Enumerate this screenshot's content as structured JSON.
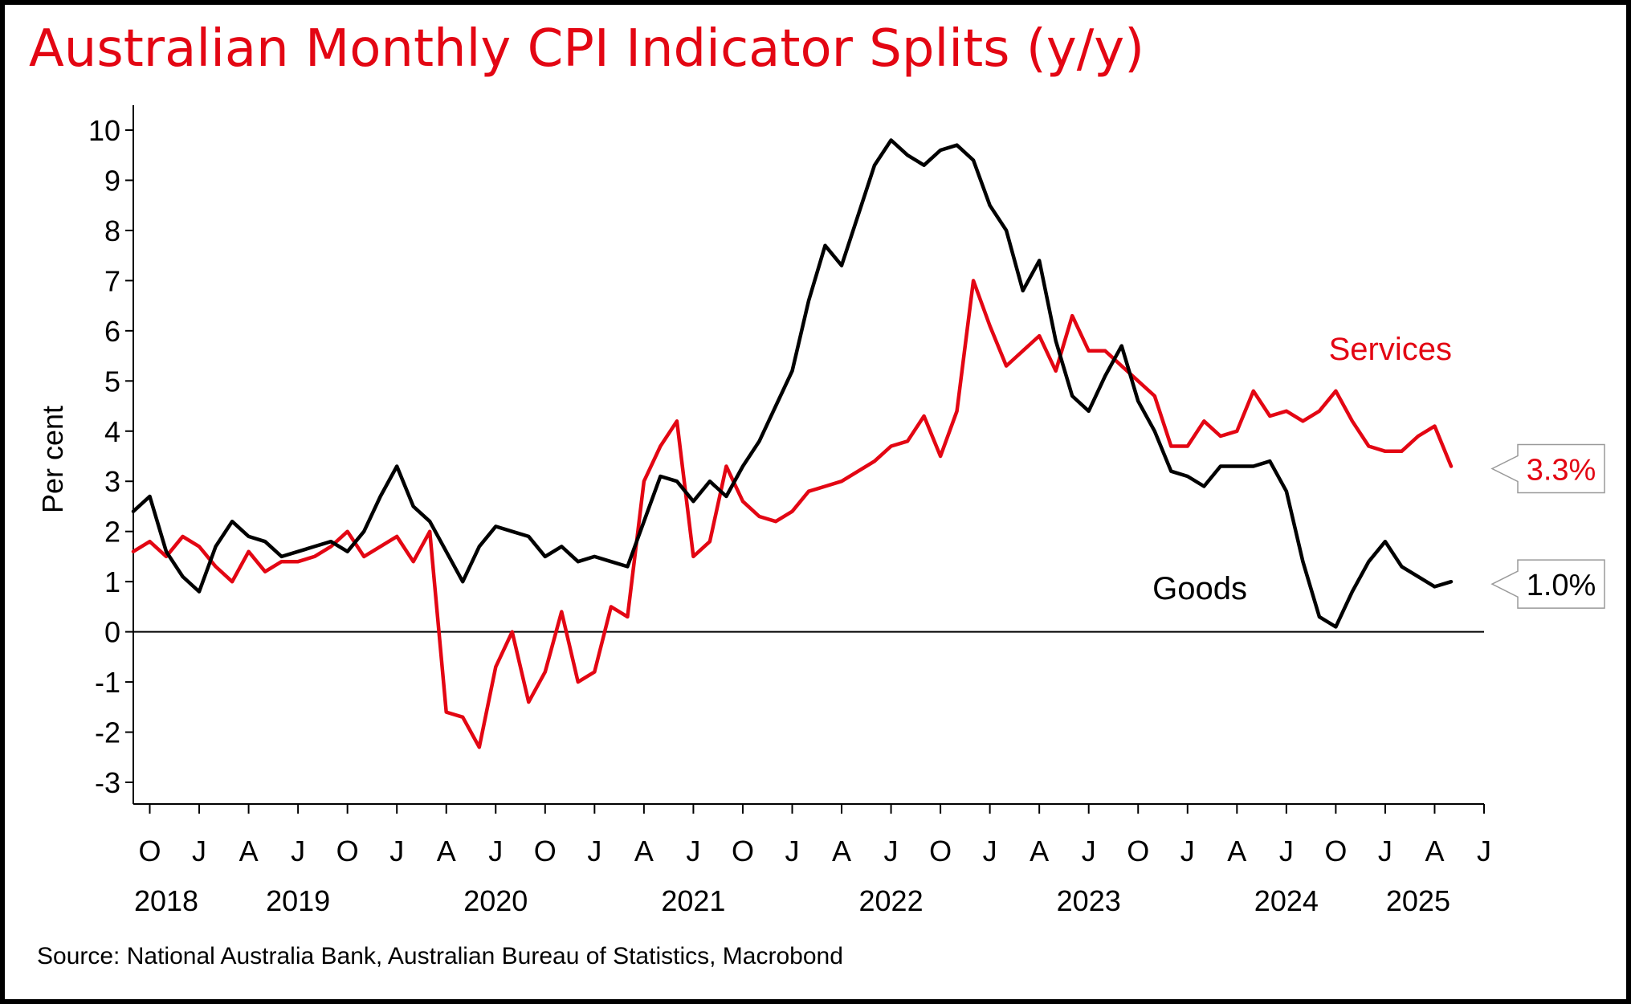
{
  "title": "Australian Monthly CPI Indicator Splits (y/y)",
  "title_color": "#e30613",
  "source": "Source: National Australia Bank, Australian Bureau of Statistics, Macrobond",
  "chart_data": {
    "type": "line",
    "ylabel": "Per cent",
    "ylim": [
      -3.5,
      10.5
    ],
    "yticks": [
      10,
      9,
      8,
      7,
      6,
      5,
      4,
      3,
      2,
      1,
      0,
      -1,
      -2,
      -3
    ],
    "month_ticks": [
      {
        "date": "2018-10",
        "label": "O"
      },
      {
        "date": "2019-01",
        "label": "J"
      },
      {
        "date": "2019-04",
        "label": "A"
      },
      {
        "date": "2019-07",
        "label": "J"
      },
      {
        "date": "2019-10",
        "label": "O"
      },
      {
        "date": "2020-01",
        "label": "J"
      },
      {
        "date": "2020-04",
        "label": "A"
      },
      {
        "date": "2020-07",
        "label": "J"
      },
      {
        "date": "2020-10",
        "label": "O"
      },
      {
        "date": "2021-01",
        "label": "J"
      },
      {
        "date": "2021-04",
        "label": "A"
      },
      {
        "date": "2021-07",
        "label": "J"
      },
      {
        "date": "2021-10",
        "label": "O"
      },
      {
        "date": "2022-01",
        "label": "J"
      },
      {
        "date": "2022-04",
        "label": "A"
      },
      {
        "date": "2022-07",
        "label": "J"
      },
      {
        "date": "2022-10",
        "label": "O"
      },
      {
        "date": "2023-01",
        "label": "J"
      },
      {
        "date": "2023-04",
        "label": "A"
      },
      {
        "date": "2023-07",
        "label": "J"
      },
      {
        "date": "2023-10",
        "label": "O"
      },
      {
        "date": "2024-01",
        "label": "J"
      },
      {
        "date": "2024-04",
        "label": "A"
      },
      {
        "date": "2024-07",
        "label": "J"
      },
      {
        "date": "2024-10",
        "label": "O"
      },
      {
        "date": "2025-01",
        "label": "J"
      },
      {
        "date": "2025-04",
        "label": "A"
      },
      {
        "date": "2025-07",
        "label": "J"
      }
    ],
    "year_labels": [
      {
        "date": "2018-11",
        "label": "2018"
      },
      {
        "date": "2019-07",
        "label": "2019"
      },
      {
        "date": "2020-07",
        "label": "2020"
      },
      {
        "date": "2021-07",
        "label": "2021"
      },
      {
        "date": "2022-07",
        "label": "2022"
      },
      {
        "date": "2023-07",
        "label": "2023"
      },
      {
        "date": "2024-07",
        "label": "2024"
      },
      {
        "date": "2025-03",
        "label": "2025"
      }
    ],
    "grid": false,
    "x_start": "2018-09",
    "x_end": "2025-07",
    "series": [
      {
        "name": "Services",
        "color": "#e30613",
        "end_label": "3.3%",
        "x": [
          "2018-09",
          "2018-10",
          "2018-11",
          "2018-12",
          "2019-01",
          "2019-02",
          "2019-03",
          "2019-04",
          "2019-05",
          "2019-06",
          "2019-07",
          "2019-08",
          "2019-09",
          "2019-10",
          "2019-11",
          "2019-12",
          "2020-01",
          "2020-02",
          "2020-03",
          "2020-04",
          "2020-05",
          "2020-06",
          "2020-07",
          "2020-08",
          "2020-09",
          "2020-10",
          "2020-11",
          "2020-12",
          "2021-01",
          "2021-02",
          "2021-03",
          "2021-04",
          "2021-05",
          "2021-06",
          "2021-07",
          "2021-08",
          "2021-09",
          "2021-10",
          "2021-11",
          "2021-12",
          "2022-01",
          "2022-02",
          "2022-03",
          "2022-04",
          "2022-05",
          "2022-06",
          "2022-07",
          "2022-08",
          "2022-09",
          "2022-10",
          "2022-11",
          "2022-12",
          "2023-01",
          "2023-02",
          "2023-03",
          "2023-04",
          "2023-05",
          "2023-06",
          "2023-07",
          "2023-08",
          "2023-09",
          "2023-10",
          "2023-11",
          "2023-12",
          "2024-01",
          "2024-02",
          "2024-03",
          "2024-04",
          "2024-05",
          "2024-06",
          "2024-07",
          "2024-08",
          "2024-09",
          "2024-10",
          "2024-11",
          "2024-12",
          "2025-01",
          "2025-02",
          "2025-03",
          "2025-04",
          "2025-05"
        ],
        "values": [
          1.6,
          1.8,
          1.5,
          1.9,
          1.7,
          1.3,
          1.0,
          1.6,
          1.2,
          1.4,
          1.4,
          1.5,
          1.7,
          2.0,
          1.5,
          1.7,
          1.9,
          1.4,
          2.0,
          -1.6,
          -1.7,
          -2.3,
          -0.7,
          0.0,
          -1.4,
          -0.8,
          0.4,
          -1.0,
          -0.8,
          0.5,
          0.3,
          3.0,
          3.7,
          4.2,
          1.5,
          1.8,
          3.3,
          2.6,
          2.3,
          2.2,
          2.4,
          2.8,
          2.9,
          3.0,
          3.2,
          3.4,
          3.7,
          3.8,
          4.3,
          3.5,
          4.4,
          7.0,
          6.1,
          5.3,
          5.6,
          5.9,
          5.2,
          6.3,
          5.6,
          5.6,
          5.3,
          5.0,
          4.7,
          3.7,
          3.7,
          4.2,
          3.9,
          4.0,
          4.8,
          4.3,
          4.4,
          4.2,
          4.4,
          4.8,
          4.2,
          3.7,
          3.6,
          3.6,
          3.9,
          4.1,
          3.3
        ]
      },
      {
        "name": "Goods",
        "color": "#000000",
        "end_label": "1.0%",
        "x": [
          "2018-09",
          "2018-10",
          "2018-11",
          "2018-12",
          "2019-01",
          "2019-02",
          "2019-03",
          "2019-04",
          "2019-05",
          "2019-06",
          "2019-07",
          "2019-08",
          "2019-09",
          "2019-10",
          "2019-11",
          "2019-12",
          "2020-01",
          "2020-02",
          "2020-03",
          "2020-04",
          "2020-05",
          "2020-06",
          "2020-07",
          "2020-08",
          "2020-09",
          "2020-10",
          "2020-11",
          "2020-12",
          "2021-01",
          "2021-02",
          "2021-03",
          "2021-04",
          "2021-05",
          "2021-06",
          "2021-07",
          "2021-08",
          "2021-09",
          "2021-10",
          "2021-11",
          "2021-12",
          "2022-01",
          "2022-02",
          "2022-03",
          "2022-04",
          "2022-05",
          "2022-06",
          "2022-07",
          "2022-08",
          "2022-09",
          "2022-10",
          "2022-11",
          "2022-12",
          "2023-01",
          "2023-02",
          "2023-03",
          "2023-04",
          "2023-05",
          "2023-06",
          "2023-07",
          "2023-08",
          "2023-09",
          "2023-10",
          "2023-11",
          "2023-12",
          "2024-01",
          "2024-02",
          "2024-03",
          "2024-04",
          "2024-05",
          "2024-06",
          "2024-07",
          "2024-08",
          "2024-09",
          "2024-10",
          "2024-11",
          "2024-12",
          "2025-01",
          "2025-02",
          "2025-03",
          "2025-04",
          "2025-05"
        ],
        "values": [
          2.4,
          2.7,
          1.6,
          1.1,
          0.8,
          1.7,
          2.2,
          1.9,
          1.8,
          1.5,
          1.6,
          1.7,
          1.8,
          1.6,
          2.0,
          2.7,
          3.3,
          2.5,
          2.2,
          1.6,
          1.0,
          1.7,
          2.1,
          2.0,
          1.9,
          1.5,
          1.7,
          1.4,
          1.5,
          1.4,
          1.3,
          2.2,
          3.1,
          3.0,
          2.6,
          3.0,
          2.7,
          3.3,
          3.8,
          4.5,
          5.2,
          6.6,
          7.7,
          7.3,
          8.3,
          9.3,
          9.8,
          9.5,
          9.3,
          9.6,
          9.7,
          9.4,
          8.5,
          8.0,
          6.8,
          7.4,
          5.8,
          4.7,
          4.4,
          5.1,
          5.7,
          4.6,
          4.0,
          3.2,
          3.1,
          2.9,
          3.3,
          3.3,
          3.3,
          3.4,
          2.8,
          1.4,
          0.3,
          0.1,
          0.8,
          1.4,
          1.8,
          1.3,
          1.1,
          0.9,
          1.0
        ]
      }
    ]
  }
}
